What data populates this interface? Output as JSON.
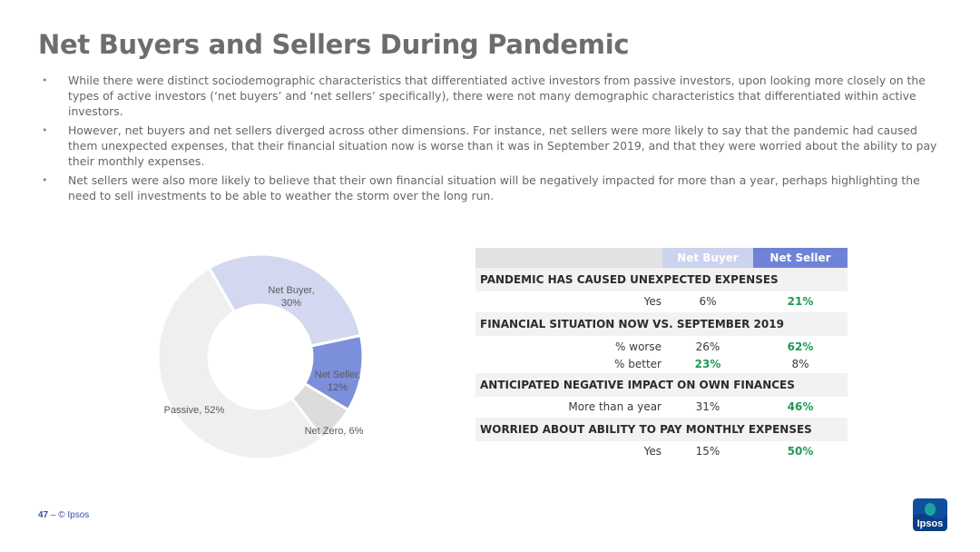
{
  "title": "Net Buyers and Sellers During Pandemic",
  "bullets": [
    "While there were distinct sociodemographic characteristics that differentiated active investors from passive investors, upon looking more closely on the types of active investors (‘net buyers’ and ‘net sellers’ specifically), there were not many demographic characteristics that differentiated within active investors.",
    "However, net buyers and net sellers diverged across other dimensions. For instance, net sellers were more likely to say that the pandemic had caused them unexpected expenses, that their financial situation now is worse than it was in September 2019, and that they were worried about the ability to pay their monthly expenses.",
    "Net sellers were also more likely to believe that their own financial situation will be negatively impacted for more than a year, perhaps highlighting the need to sell investments to be able to weather the storm over the long run."
  ],
  "chart_data": [
    {
      "type": "pie",
      "variant": "donut",
      "slices": [
        {
          "name": "Net Buyer",
          "value": 30,
          "label_line1": "Net Buyer,",
          "label_line2": "30%",
          "color": "#d3d8f0"
        },
        {
          "name": "Net Seller",
          "value": 12,
          "label_line1": "Net Seller,",
          "label_line2": "12%",
          "color": "#7b8fda"
        },
        {
          "name": "Net Zero",
          "value": 6,
          "label_line1": "Net Zero, 6%",
          "label_line2": "",
          "color": "#dcdcdc"
        },
        {
          "name": "Passive",
          "value": 52,
          "label_line1": "Passive, 52%",
          "label_line2": "",
          "color": "#efefef"
        }
      ]
    },
    {
      "type": "table",
      "columns": [
        "Net Buyer",
        "Net Seller"
      ],
      "sections": [
        {
          "title": "PANDEMIC HAS CAUSED UNEXPECTED EXPENSES",
          "rows": [
            {
              "label": "Yes",
              "buyer": "6%",
              "seller": "21%",
              "highlight": "seller"
            }
          ]
        },
        {
          "title": "FINANCIAL SITUATION NOW VS. SEPTEMBER 2019",
          "rows": [
            {
              "label": "% worse",
              "buyer": "26%",
              "seller": "62%",
              "highlight": "seller"
            },
            {
              "label": "% better",
              "buyer": "23%",
              "seller": "8%",
              "highlight": "buyer"
            }
          ]
        },
        {
          "title": "ANTICIPATED NEGATIVE IMPACT ON OWN FINANCES",
          "rows": [
            {
              "label": "More than a year",
              "buyer": "31%",
              "seller": "46%",
              "highlight": "seller"
            }
          ]
        },
        {
          "title": "WORRIED ABOUT ABILITY TO PAY MONTHLY EXPENSES",
          "rows": [
            {
              "label": "Yes",
              "buyer": "15%",
              "seller": "50%",
              "highlight": "seller"
            }
          ]
        }
      ]
    }
  ],
  "colors": {
    "highlight": "#1d9a54",
    "brand": "#3a4ea8"
  },
  "footer": {
    "page": "47",
    "sep": "–",
    "copyright": "© Ipsos"
  },
  "logo": {
    "text": "Ipsos",
    "icon": "ipsos-logo-icon"
  }
}
